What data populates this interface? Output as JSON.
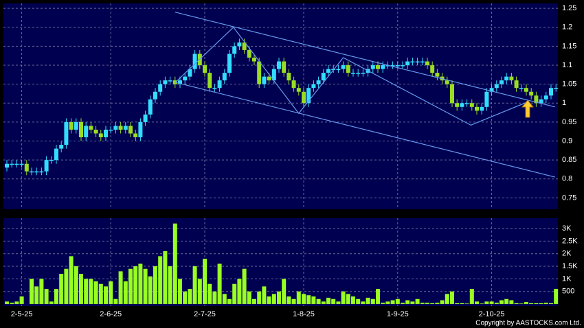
{
  "chart_data": {
    "type": "candlestick",
    "categories": [
      null,
      null,
      null,
      "2-5-25",
      null,
      null,
      null,
      null,
      null,
      null,
      null,
      null,
      null,
      null,
      null,
      null,
      null,
      null,
      null,
      null,
      null,
      "2-6-25",
      null,
      null,
      null,
      null,
      null,
      null,
      null,
      null,
      null,
      null,
      null,
      null,
      null,
      null,
      null,
      null,
      null,
      null,
      "2-7-25",
      null,
      null,
      null,
      null,
      null,
      null,
      null,
      null,
      null,
      null,
      null,
      null,
      null,
      null,
      null,
      null,
      null,
      null,
      null,
      "1-8-25",
      null,
      null,
      null,
      null,
      null,
      null,
      null,
      null,
      null,
      null,
      null,
      null,
      null,
      null,
      null,
      null,
      null,
      null,
      "1-9-25",
      null,
      null,
      null,
      null,
      null,
      null,
      null,
      null,
      null,
      null,
      null,
      null,
      null,
      null,
      null,
      null,
      null,
      null,
      "2-10-25",
      null,
      null,
      null,
      null,
      null,
      null,
      null,
      null,
      null,
      null,
      null,
      null,
      null
    ],
    "open": [
      0.83,
      0.84,
      0.84,
      0.84,
      0.84,
      0.82,
      0.82,
      0.82,
      0.82,
      0.85,
      0.85,
      0.88,
      0.89,
      0.95,
      0.93,
      0.95,
      0.91,
      0.94,
      0.93,
      0.92,
      0.91,
      0.93,
      0.93,
      0.94,
      0.93,
      0.94,
      0.92,
      0.91,
      0.95,
      0.97,
      1.01,
      1.03,
      1.05,
      1.06,
      1.06,
      1.05,
      1.06,
      1.07,
      1.09,
      1.13,
      1.1,
      1.08,
      1.04,
      1.04,
      1.06,
      1.08,
      1.13,
      1.15,
      1.16,
      1.14,
      1.12,
      1.11,
      1.05,
      1.07,
      1.06,
      1.09,
      1.11,
      1.08,
      1.06,
      1.04,
      1.03,
      1.0,
      1.04,
      1.05,
      1.06,
      1.08,
      1.09,
      1.09,
      1.09,
      1.1,
      1.08,
      1.08,
      1.08,
      1.08,
      1.09,
      1.1,
      1.09,
      1.1,
      1.1,
      1.1,
      1.1,
      1.1,
      1.11,
      1.11,
      1.11,
      1.11,
      1.1,
      1.08,
      1.07,
      1.06,
      1.05,
      1.0,
      0.99,
      1.0,
      1.0,
      0.99,
      0.98,
      0.99,
      1.03,
      1.04,
      1.05,
      1.06,
      1.07,
      1.06,
      1.04,
      1.04,
      1.03,
      1.02,
      1.0,
      1.01,
      1.02,
      1.04
    ],
    "high": [
      0.85,
      0.85,
      0.85,
      0.85,
      0.85,
      0.83,
      0.83,
      0.83,
      0.86,
      0.86,
      0.89,
      0.9,
      0.96,
      0.96,
      0.96,
      0.96,
      0.95,
      0.95,
      0.94,
      0.93,
      0.94,
      0.94,
      0.95,
      0.95,
      0.95,
      0.95,
      0.93,
      0.96,
      0.98,
      1.02,
      1.04,
      1.06,
      1.07,
      1.07,
      1.07,
      1.07,
      1.08,
      1.1,
      1.14,
      1.14,
      1.11,
      1.09,
      1.05,
      1.07,
      1.09,
      1.14,
      1.16,
      1.17,
      1.17,
      1.15,
      1.13,
      1.12,
      1.08,
      1.08,
      1.1,
      1.12,
      1.12,
      1.09,
      1.07,
      1.05,
      1.04,
      1.05,
      1.06,
      1.07,
      1.09,
      1.1,
      1.1,
      1.1,
      1.11,
      1.11,
      1.09,
      1.09,
      1.09,
      1.1,
      1.11,
      1.11,
      1.11,
      1.11,
      1.11,
      1.11,
      1.11,
      1.12,
      1.12,
      1.12,
      1.12,
      1.12,
      1.11,
      1.09,
      1.08,
      1.07,
      1.06,
      1.01,
      1.01,
      1.01,
      1.01,
      1.0,
      1.0,
      1.04,
      1.05,
      1.06,
      1.07,
      1.08,
      1.08,
      1.07,
      1.05,
      1.05,
      1.04,
      1.03,
      1.02,
      1.03,
      1.05,
      1.05
    ],
    "low": [
      0.82,
      0.83,
      0.83,
      0.83,
      0.81,
      0.81,
      0.81,
      0.81,
      0.81,
      0.84,
      0.84,
      0.87,
      0.88,
      0.92,
      0.92,
      0.9,
      0.9,
      0.92,
      0.91,
      0.9,
      0.9,
      0.92,
      0.92,
      0.92,
      0.92,
      0.91,
      0.9,
      0.9,
      0.94,
      0.96,
      1.0,
      1.02,
      1.04,
      1.05,
      1.04,
      1.04,
      1.05,
      1.06,
      1.08,
      1.09,
      1.07,
      1.03,
      1.03,
      1.03,
      1.05,
      1.07,
      1.12,
      1.14,
      1.13,
      1.11,
      1.1,
      1.04,
      1.04,
      1.05,
      1.05,
      1.08,
      1.07,
      1.05,
      1.03,
      1.02,
      0.99,
      0.99,
      1.03,
      1.04,
      1.05,
      1.07,
      1.08,
      1.08,
      1.08,
      1.07,
      1.07,
      1.07,
      1.07,
      1.07,
      1.08,
      1.08,
      1.08,
      1.09,
      1.09,
      1.09,
      1.09,
      1.09,
      1.1,
      1.1,
      1.1,
      1.09,
      1.07,
      1.06,
      1.05,
      1.04,
      0.99,
      0.98,
      0.98,
      0.99,
      0.98,
      0.97,
      0.97,
      0.98,
      1.02,
      1.03,
      1.04,
      1.05,
      1.05,
      1.03,
      1.03,
      1.02,
      1.01,
      0.99,
      0.99,
      1.0,
      1.01,
      1.03
    ],
    "close": [
      0.84,
      0.84,
      0.84,
      0.84,
      0.82,
      0.82,
      0.82,
      0.82,
      0.85,
      0.85,
      0.88,
      0.89,
      0.95,
      0.93,
      0.95,
      0.91,
      0.94,
      0.93,
      0.92,
      0.91,
      0.93,
      0.93,
      0.94,
      0.93,
      0.94,
      0.92,
      0.91,
      0.95,
      0.97,
      1.01,
      1.03,
      1.05,
      1.06,
      1.06,
      1.05,
      1.06,
      1.07,
      1.09,
      1.13,
      1.1,
      1.08,
      1.04,
      1.04,
      1.06,
      1.08,
      1.13,
      1.15,
      1.16,
      1.14,
      1.12,
      1.11,
      1.05,
      1.07,
      1.06,
      1.09,
      1.11,
      1.08,
      1.06,
      1.04,
      1.03,
      1.0,
      1.04,
      1.05,
      1.06,
      1.08,
      1.09,
      1.09,
      1.09,
      1.1,
      1.08,
      1.08,
      1.08,
      1.08,
      1.09,
      1.1,
      1.09,
      1.1,
      1.1,
      1.1,
      1.1,
      1.1,
      1.11,
      1.11,
      1.11,
      1.11,
      1.1,
      1.08,
      1.07,
      1.06,
      1.05,
      1.0,
      0.99,
      1.0,
      1.0,
      0.99,
      0.98,
      0.99,
      1.03,
      1.04,
      1.05,
      1.06,
      1.07,
      1.06,
      1.04,
      1.04,
      1.03,
      1.02,
      1.0,
      1.01,
      1.02,
      1.04,
      1.04
    ],
    "up_color": "#33ddff",
    "down_color": "#99dd22",
    "ylim": [
      0.72,
      1.263
    ],
    "yticks": [
      0.75,
      0.8,
      0.85,
      0.9,
      0.95,
      1,
      1.05,
      1.1,
      1.15,
      1.2,
      1.25
    ],
    "trendlines": [
      {
        "x": [
          34,
          110.8
        ],
        "y": [
          1.24,
          0.99
        ]
      },
      {
        "x": [
          34,
          110.8
        ],
        "y": [
          1.055,
          0.805
        ]
      },
      {
        "x": [
          34,
          45.8,
          59,
          68,
          93.8,
          105.6
        ],
        "y": [
          1.054,
          1.2,
          0.973,
          1.12,
          0.942,
          1.005
        ]
      }
    ],
    "trendline_color": "#6699ee",
    "volume": [
      100,
      50,
      100,
      300,
      0,
      1000,
      700,
      1000,
      600,
      100,
      600,
      1200,
      1400,
      1900,
      1500,
      1200,
      1000,
      1000,
      900,
      800,
      700,
      900,
      200,
      1300,
      900,
      1400,
      1500,
      1600,
      1400,
      1100,
      1500,
      1900,
      2100,
      1500,
      3200,
      1000,
      500,
      600,
      1500,
      1000,
      1800,
      800,
      500,
      1600,
      400,
      200,
      800,
      1000,
      1400,
      500,
      200,
      500,
      700,
      300,
      400,
      500,
      1000,
      300,
      200,
      500,
      400,
      350,
      300,
      200,
      100,
      250,
      200,
      100,
      500,
      400,
      300,
      200,
      100,
      250,
      200,
      600,
      50,
      100,
      150,
      200,
      50,
      150,
      100,
      200,
      50,
      50,
      30,
      50,
      150,
      400,
      500,
      30,
      30,
      20,
      600,
      100,
      20,
      100,
      100,
      50,
      150,
      200,
      150,
      30,
      20,
      80,
      30,
      30,
      30,
      50,
      30,
      600
    ],
    "volume_color": "#99ff22",
    "volume_ylim": [
      -80,
      3410
    ],
    "volume_yticks": [
      500,
      {
        "value": 1000,
        "label": "1K"
      },
      {
        "value": 1500,
        "label": "1.5K"
      },
      {
        "value": 2000,
        "label": "2K"
      },
      {
        "value": 2500,
        "label": "2.5K"
      },
      {
        "value": 3000,
        "label": "3K"
      }
    ],
    "grid": true
  },
  "copyright": "Copyright by AASTOCKS.com Ltd."
}
